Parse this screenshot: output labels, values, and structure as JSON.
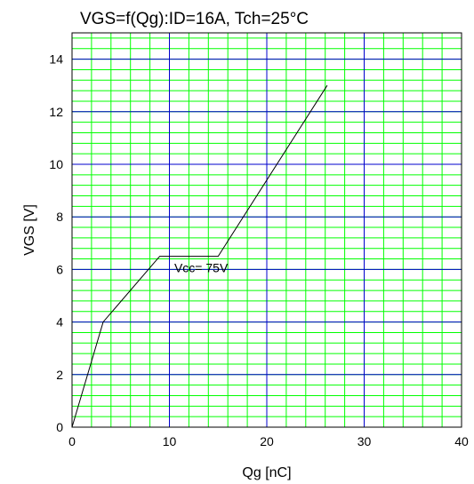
{
  "chart_data": {
    "type": "line",
    "title": "VGS=f(Qg):ID=16A, Tch=25°C",
    "xlabel": "Qg [nC]",
    "ylabel": "VGS [V]",
    "xlim": [
      0,
      40
    ],
    "ylim": [
      0,
      15
    ],
    "x_ticks": [
      0,
      10,
      20,
      30,
      40
    ],
    "y_ticks": [
      0,
      2,
      4,
      6,
      8,
      10,
      12,
      14
    ],
    "x_major_step": 10,
    "x_minor_step": 2,
    "y_major_step": 2,
    "y_minor_step": 0.4,
    "grid": true,
    "colors": {
      "minor_grid": "#00ff00",
      "major_grid": "#0000cc",
      "line": "#000000",
      "frame": "#000000"
    },
    "series": [
      {
        "points": [
          [
            0,
            0
          ],
          [
            3.2,
            4.0
          ],
          [
            9.0,
            6.5
          ],
          [
            15.0,
            6.5
          ],
          [
            26.2,
            13.0
          ]
        ]
      }
    ],
    "annotations": [
      {
        "text": "Vcc= 75V",
        "x": 10.5,
        "y": 5.9
      }
    ]
  }
}
